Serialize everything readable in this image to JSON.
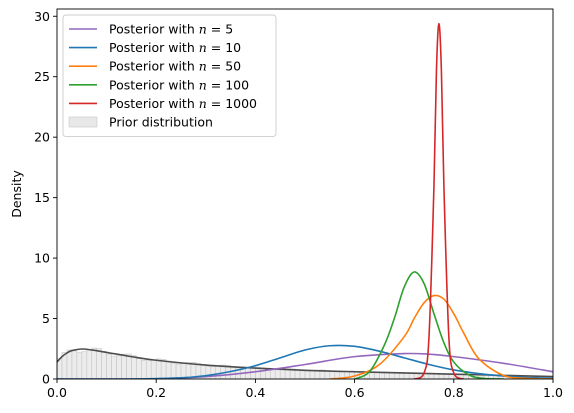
{
  "chart_data": {
    "type": "line",
    "title": "",
    "xlabel": "",
    "ylabel": "Density",
    "xlim": [
      0,
      1
    ],
    "ylim": [
      0,
      30.6
    ],
    "x_ticks": [
      0,
      0.2,
      0.4,
      0.6,
      0.8,
      1
    ],
    "x_tick_labels": [
      "0.0",
      "0.2",
      "0.4",
      "0.6",
      "0.8",
      "1.0"
    ],
    "y_ticks": [
      0,
      5,
      10,
      15,
      20,
      25,
      30
    ],
    "y_tick_labels": [
      "0",
      "5",
      "10",
      "15",
      "20",
      "25",
      "30"
    ],
    "grid": false,
    "legend_position": "top-left",
    "series": [
      {
        "name": "Posterior with n = 5",
        "legend_prefix": "Posterior with ",
        "legend_var": "n",
        "legend_value": "= 5",
        "color": "#9467bd",
        "x": [
          0.0,
          0.1,
          0.2,
          0.3,
          0.4,
          0.5,
          0.6,
          0.7,
          0.75,
          0.8,
          0.9,
          1.0
        ],
        "y": [
          0.0,
          0.0,
          0.02,
          0.2,
          0.6,
          1.2,
          1.85,
          2.1,
          2.05,
          1.85,
          1.3,
          0.6
        ]
      },
      {
        "name": "Posterior with n = 10",
        "legend_prefix": "Posterior with ",
        "legend_var": "n",
        "legend_value": "= 10",
        "color": "#1f77b4",
        "x": [
          0.0,
          0.15,
          0.25,
          0.3,
          0.35,
          0.4,
          0.45,
          0.5,
          0.55,
          0.6,
          0.65,
          0.7,
          0.75,
          0.8,
          0.85,
          0.9,
          0.95,
          1.0
        ],
        "y": [
          0.0,
          0.0,
          0.1,
          0.28,
          0.62,
          1.1,
          1.75,
          2.4,
          2.75,
          2.7,
          2.3,
          1.75,
          1.2,
          0.75,
          0.45,
          0.25,
          0.12,
          0.05
        ]
      },
      {
        "name": "Posterior with n = 50",
        "legend_prefix": "Posterior with ",
        "legend_var": "n",
        "legend_value": "= 50",
        "color": "#ff7f0e",
        "x": [
          0.55,
          0.6,
          0.65,
          0.7,
          0.72,
          0.74,
          0.76,
          0.78,
          0.8,
          0.82,
          0.85,
          0.9,
          0.95,
          1.0
        ],
        "y": [
          0.0,
          0.25,
          1.2,
          3.5,
          5.0,
          6.3,
          6.9,
          6.6,
          5.4,
          3.8,
          1.7,
          0.3,
          0.05,
          0.0
        ]
      },
      {
        "name": "Posterior with n = 100",
        "legend_prefix": "Posterior with ",
        "legend_var": "n",
        "legend_value": "= 100",
        "color": "#2ca02c",
        "x": [
          0.6,
          0.63,
          0.66,
          0.68,
          0.7,
          0.72,
          0.74,
          0.76,
          0.78,
          0.8,
          0.83,
          0.86,
          0.9
        ],
        "y": [
          0.0,
          0.6,
          2.8,
          5.0,
          7.6,
          8.85,
          7.9,
          5.4,
          3.0,
          1.4,
          0.35,
          0.05,
          0.0
        ]
      },
      {
        "name": "Posterior with n = 1000",
        "legend_prefix": "Posterior with ",
        "legend_var": "n",
        "legend_value": "= 1000",
        "color": "#d62728",
        "x": [
          0.72,
          0.74,
          0.75,
          0.76,
          0.765,
          0.77,
          0.775,
          0.78,
          0.79,
          0.8,
          0.82
        ],
        "y": [
          0.0,
          0.5,
          3.5,
          16.0,
          25.5,
          29.4,
          25.5,
          16.0,
          3.5,
          0.5,
          0.0
        ]
      }
    ],
    "prior": {
      "name": "Prior distribution",
      "fill_color": "#d9d9d9",
      "line_color": "#4d4d4d",
      "bar_width": 0.01,
      "x": [
        0.0,
        0.01,
        0.02,
        0.03,
        0.05,
        0.07,
        0.1,
        0.15,
        0.2,
        0.3,
        0.4,
        0.5,
        0.6,
        0.7,
        0.8,
        0.9,
        1.0
      ],
      "y": [
        1.4,
        1.85,
        2.15,
        2.35,
        2.48,
        2.4,
        2.2,
        1.85,
        1.55,
        1.15,
        0.9,
        0.72,
        0.6,
        0.5,
        0.4,
        0.3,
        0.2
      ]
    }
  }
}
